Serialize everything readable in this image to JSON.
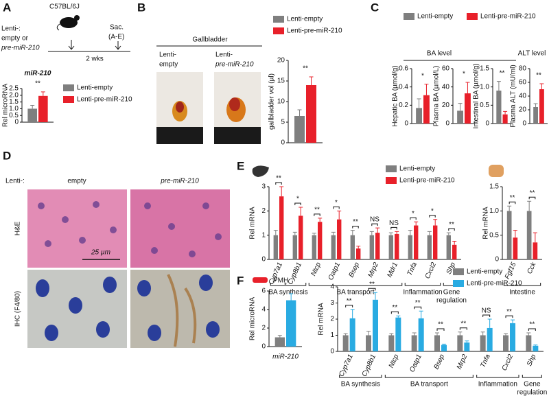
{
  "labels": {
    "panel_a": "A",
    "panel_b": "B",
    "panel_c": "C",
    "panel_d": "D",
    "panel_e": "E",
    "panel_f": "F",
    "a_lenti": "Lenti-:",
    "a_empty_or": "empty or",
    "a_pre": "pre-miR-210",
    "a_strain": "C57BL/6J",
    "a_sac": "Sac.",
    "a_ae": "(A-E)",
    "a_weeks": "2 wks",
    "b_title": "Gallbladder",
    "b_photo_1": [
      "Lenti-",
      "empty"
    ],
    "b_photo_2": [
      "Lenti-",
      "pre-miR-210"
    ],
    "c_ba_level": "BA level",
    "c_alt_level": "ALT level",
    "d_lenti": "Lenti-:",
    "d_empty": "empty",
    "d_pre": "pre-miR-210",
    "d_he": "H&E",
    "d_ihc": "IHC (F4/80)",
    "d_scale": "25 µm",
    "f_pmh": "PMH"
  },
  "chart_data": [
    {
      "type": "bar",
      "title": "miR-210",
      "ylabel": "Rel microRNA",
      "categories": [
        null
      ],
      "series": [
        {
          "name": "Lenti-empty",
          "color": "#7f7f7f",
          "values": [
            1.0
          ],
          "errors": [
            0.25
          ]
        },
        {
          "name": "Lenti-pre-miR-210",
          "color": "#e8202a",
          "values": [
            1.95
          ],
          "errors": [
            0.3
          ]
        }
      ],
      "significance": [
        "**"
      ],
      "ylim": [
        0,
        2.5
      ],
      "yticks": [
        0,
        0.5,
        {
          "value": 1,
          "label": "1.0"
        },
        1.5,
        {
          "value": 2,
          "label": "2.0"
        },
        2.5
      ]
    },
    {
      "type": "bar",
      "ylabel": "gallbladder vol (µl)",
      "categories": [
        null
      ],
      "series": [
        {
          "name": "Lenti-empty",
          "color": "#7f7f7f",
          "values": [
            6.5
          ],
          "errors": [
            1.5
          ]
        },
        {
          "name": "Lenti-pre-miR-210",
          "color": "#e8202a",
          "values": [
            14
          ],
          "errors": [
            2
          ]
        }
      ],
      "significance": [
        "**"
      ],
      "ylim": [
        0,
        20
      ],
      "yticks": [
        0,
        5,
        10,
        15,
        20
      ]
    },
    {
      "type": "bar",
      "ylabel": "Hepatic BA (µmol/g)",
      "categories": [
        null
      ],
      "series": [
        {
          "name": "Lenti-empty",
          "color": "#7f7f7f",
          "values": [
            0.17
          ],
          "errors": [
            0.1
          ]
        },
        {
          "name": "Lenti-pre-miR-210",
          "color": "#e8202a",
          "values": [
            0.31
          ],
          "errors": [
            0.12
          ]
        }
      ],
      "significance": [
        "*"
      ],
      "ylim": [
        0,
        0.6
      ],
      "yticks": [
        0,
        0.2,
        0.4,
        0.6
      ]
    },
    {
      "type": "bar",
      "ylabel": "Plasma BA (µmol/L)",
      "categories": [
        null
      ],
      "series": [
        {
          "color": "#7f7f7f",
          "values": [
            14
          ],
          "errors": [
            8
          ]
        },
        {
          "color": "#e8202a",
          "values": [
            33
          ],
          "errors": [
            12
          ]
        }
      ],
      "significance": [
        "*"
      ],
      "ylim": [
        0,
        60
      ],
      "yticks": [
        0,
        20,
        40,
        60
      ]
    },
    {
      "type": "bar",
      "ylabel": "Intestinal BA (µmol/g)",
      "categories": [
        null
      ],
      "series": [
        {
          "color": "#7f7f7f",
          "values": [
            0.9
          ],
          "errors": [
            0.25
          ]
        },
        {
          "color": "#e8202a",
          "values": [
            0.25
          ],
          "errors": [
            0.08
          ]
        }
      ],
      "significance": [
        "**"
      ],
      "ylim": [
        0,
        1.5
      ],
      "yticks": [
        0,
        0.5,
        {
          "value": 1,
          "label": "1.0"
        },
        1.5
      ]
    },
    {
      "type": "bar",
      "ylabel": "Plasma ALT (mU/ml)",
      "categories": [
        null
      ],
      "series": [
        {
          "color": "#7f7f7f",
          "values": [
            24
          ],
          "errors": [
            5
          ]
        },
        {
          "color": "#e8202a",
          "values": [
            50
          ],
          "errors": [
            8
          ]
        }
      ],
      "significance": [
        "**"
      ],
      "ylim": [
        0,
        80
      ],
      "yticks": [
        0,
        20,
        40,
        60,
        80
      ]
    },
    {
      "type": "bar",
      "ylabel": "Rel mRNA",
      "categories": [
        "Cyp7a1",
        "Cyp8b1",
        "Ntcp",
        "Oatp1",
        "Bsep",
        "Mrp2",
        "Mdr1",
        "Tnfa",
        "Cxcl2",
        "Shp"
      ],
      "series": [
        {
          "name": "Lenti-empty",
          "color": "#7f7f7f",
          "values": [
            1,
            1,
            1,
            1,
            1,
            1,
            1,
            1,
            1,
            1
          ],
          "errors": [
            0.2,
            0.12,
            0.08,
            0.12,
            0.2,
            0.15,
            0.1,
            0.2,
            0.15,
            0.1
          ]
        },
        {
          "name": "Lenti-pre-miR-210",
          "color": "#e8202a",
          "values": [
            2.6,
            1.8,
            1.55,
            1.65,
            0.45,
            1.1,
            1.05,
            1.4,
            1.4,
            0.6
          ],
          "errors": [
            0.4,
            0.35,
            0.15,
            0.35,
            0.1,
            0.2,
            0.1,
            0.15,
            0.25,
            0.15
          ]
        }
      ],
      "significance": [
        "**",
        "*",
        "**",
        "*",
        "**",
        "NS",
        "NS",
        "*",
        "*",
        "**"
      ],
      "group_labels": [
        "BA synthesis",
        "BA transport",
        "Inflammation",
        [
          "Gene",
          "regulation"
        ]
      ],
      "ylim": [
        0,
        3
      ],
      "yticks": [
        0,
        1,
        2,
        3
      ]
    },
    {
      "type": "bar",
      "ylabel": "Rel mRNA",
      "categories": [
        "Fgf15",
        "Cck"
      ],
      "series": [
        {
          "color": "#7f7f7f",
          "values": [
            1.0,
            1.0
          ],
          "errors": [
            0.1,
            0.2
          ]
        },
        {
          "color": "#e8202a",
          "values": [
            0.45,
            0.35
          ],
          "errors": [
            0.15,
            0.2
          ]
        }
      ],
      "significance": [
        "**",
        "**"
      ],
      "group_labels": [
        "Intestine"
      ],
      "ylim": [
        0,
        1.5
      ],
      "yticks": [
        0,
        0.5,
        {
          "value": 1,
          "label": "1.0"
        },
        1.5
      ]
    },
    {
      "type": "bar",
      "ylabel": "Rel microRNA",
      "categories": [
        "miR-210"
      ],
      "series": [
        {
          "color": "#7f7f7f",
          "values": [
            1.0
          ],
          "errors": [
            0.2
          ]
        },
        {
          "color": "#29abe2",
          "values": [
            5.0
          ],
          "errors": [
            0.7
          ]
        }
      ],
      "significance": [
        "*"
      ],
      "ylim": [
        0,
        6
      ],
      "yticks": [
        0,
        2,
        4,
        6
      ]
    },
    {
      "type": "bar",
      "ylabel": "Rel mRNA",
      "categories": [
        "Cyp7a1",
        "Cyp8b1",
        "Ntcp",
        "Oatp1",
        "Bsep",
        "Mrp2",
        "Tnfa",
        "Cxcl2",
        "Shp"
      ],
      "series": [
        {
          "name": "Lenti-empty",
          "color": "#7f7f7f",
          "values": [
            1,
            1,
            1,
            1,
            1,
            1,
            1,
            1,
            1
          ],
          "errors": [
            0.1,
            0.25,
            0.1,
            0.15,
            0.15,
            0.2,
            0.2,
            0.1,
            0.15
          ]
        },
        {
          "name": "Lenti-pre-miR-210",
          "color": "#29abe2",
          "values": [
            2.05,
            3.2,
            2.1,
            2.05,
            0.4,
            0.55,
            1.45,
            1.75,
            0.35
          ],
          "errors": [
            0.55,
            0.45,
            0.1,
            0.45,
            0.05,
            0.1,
            0.55,
            0.2,
            0.05
          ]
        }
      ],
      "significance": [
        "**",
        "**",
        "**",
        "**",
        "**",
        "**",
        "NS",
        "**",
        "**"
      ],
      "group_labels": [
        "BA synthesis",
        "BA transport",
        "Inflammation",
        [
          "Gene",
          "regulation"
        ]
      ],
      "ylim": [
        0,
        4
      ],
      "yticks": [
        0,
        1,
        2,
        3,
        4
      ]
    }
  ]
}
